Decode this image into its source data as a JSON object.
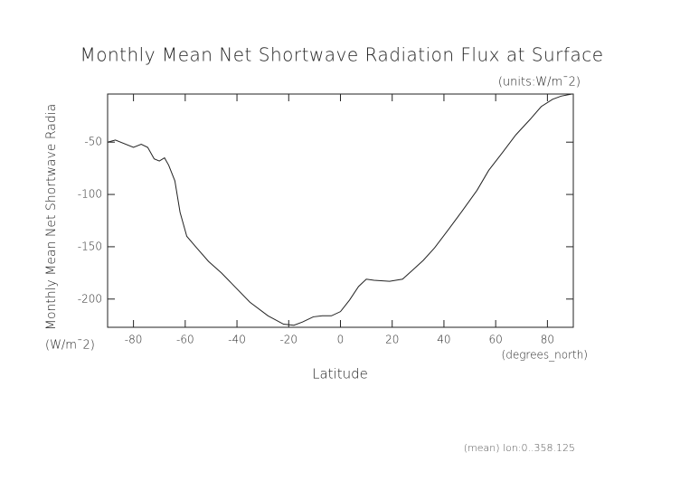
{
  "chart_data": {
    "type": "line",
    "title": "Monthly Mean Net Shortwave Radiation Flux at Surface",
    "units": "(units:W/m¯2)",
    "y_label": "Monthly Mean Net Shortwave Radia",
    "y_unit": "(W/m¯2)",
    "x_unit": "(degrees_north)",
    "x_label": "Latitude",
    "footnote": "(mean) lon:0..358.125",
    "x": [
      -90,
      -87,
      -80,
      -77,
      -74.5,
      -72,
      -70,
      -68,
      -66.4,
      -64,
      -62,
      -59.4,
      -55.6,
      -51,
      -46,
      -40.5,
      -35,
      -28,
      -22,
      -18,
      -14.7,
      -10.5,
      -7,
      -3.5,
      0,
      3.5,
      7,
      10,
      13,
      19,
      24,
      27.6,
      32,
      36.4,
      41.6,
      47,
      52.8,
      57.3,
      62.6,
      67.8,
      73.4,
      77.6,
      82,
      85.3,
      89.5
    ],
    "series": [
      {
        "color": "#222222",
        "values": [
          -50,
          -48,
          -55,
          -52,
          -55,
          -66,
          -68,
          -65,
          -72,
          -87,
          -117,
          -140,
          -151,
          -164,
          -175,
          -189,
          -203,
          -216,
          -224,
          -225,
          -222,
          -217,
          -216,
          -216,
          -212,
          -201,
          -188,
          -181,
          -182,
          -183,
          -181,
          -173,
          -163,
          -151,
          -134,
          -116,
          -96,
          -77,
          -60,
          -43,
          -28,
          -16,
          -9,
          -6,
          -4
        ]
      }
    ],
    "xlim": [
      -90,
      90
    ],
    "ylim": [
      -227,
      -4
    ],
    "xticks": [
      -80,
      -60,
      -40,
      -20,
      0,
      20,
      40,
      60,
      80
    ],
    "yticks": [
      -50,
      -100,
      -150,
      -200
    ]
  }
}
